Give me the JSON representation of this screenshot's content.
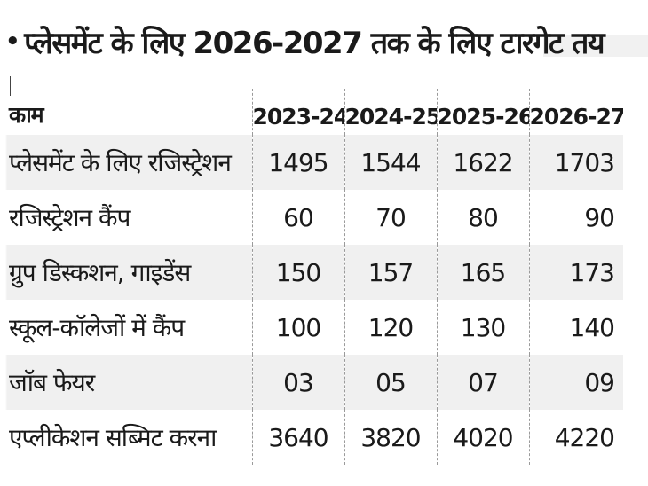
{
  "title": {
    "bullet": "•",
    "text": "प्लेसमेंट के लिए 2026-2027 तक के लिए टारगेट तय"
  },
  "table": {
    "headers": [
      "काम",
      "2023-24",
      "2024-25",
      "2025-26",
      "2026-27"
    ],
    "rows": [
      {
        "label": "प्लेसमेंट के लिए रजिस्ट्रेशन",
        "values": [
          "1495",
          "1544",
          "1622",
          "1703"
        ]
      },
      {
        "label": "रजिस्ट्रेशन कैंप",
        "values": [
          "60",
          "70",
          "80",
          "90"
        ]
      },
      {
        "label": "ग्रुप डिस्कशन, गाइडेंस",
        "values": [
          "150",
          "157",
          "165",
          "173"
        ]
      },
      {
        "label": "स्कूल-कॉलेजों में कैंप",
        "values": [
          "100",
          "120",
          "130",
          "140"
        ]
      },
      {
        "label": "जॉब फेयर",
        "values": [
          "03",
          "05",
          "07",
          "09"
        ]
      },
      {
        "label": "एप्लीकेशन सब्मिट करना",
        "values": [
          "3640",
          "3820",
          "4020",
          "4220"
        ]
      }
    ]
  }
}
